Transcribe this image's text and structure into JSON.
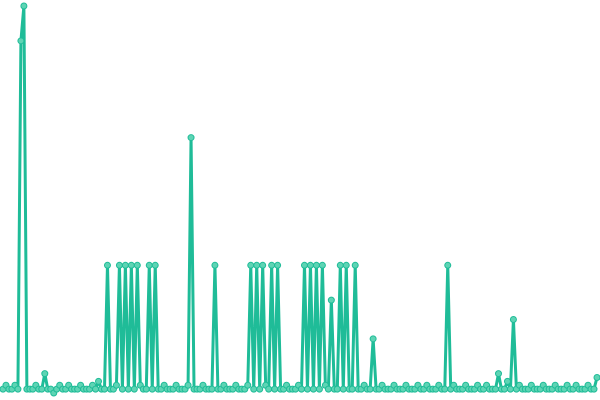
{
  "chart_data": {
    "type": "line",
    "color": "#1fbc98",
    "marker_color": "#5ed4b4",
    "ylim": [
      0,
      100
    ],
    "values": [
      1,
      2,
      1,
      1,
      2,
      1,
      91,
      100,
      1,
      1,
      1,
      2,
      1,
      1,
      5,
      1,
      1,
      0,
      1,
      2,
      1,
      1,
      2,
      1,
      1,
      1,
      2,
      1,
      1,
      1,
      2,
      1,
      3,
      1,
      1,
      33,
      1,
      1,
      2,
      33,
      1,
      33,
      1,
      33,
      1,
      33,
      2,
      1,
      1,
      33,
      1,
      33,
      1,
      1,
      2,
      1,
      1,
      1,
      2,
      1,
      1,
      1,
      2,
      66,
      1,
      1,
      1,
      2,
      1,
      1,
      1,
      33,
      1,
      1,
      2,
      1,
      1,
      1,
      2,
      1,
      1,
      1,
      2,
      33,
      1,
      33,
      1,
      33,
      2,
      1,
      33,
      1,
      33,
      1,
      1,
      2,
      1,
      1,
      1,
      2,
      1,
      33,
      1,
      33,
      1,
      33,
      1,
      33,
      2,
      1,
      24,
      1,
      1,
      33,
      1,
      33,
      1,
      1,
      33,
      1,
      1,
      2,
      1,
      1,
      14,
      1,
      1,
      2,
      1,
      1,
      1,
      2,
      1,
      1,
      1,
      2,
      1,
      1,
      1,
      2,
      1,
      1,
      2,
      1,
      1,
      1,
      2,
      1,
      1,
      33,
      1,
      2,
      1,
      1,
      1,
      2,
      1,
      1,
      1,
      2,
      1,
      1,
      2,
      1,
      1,
      1,
      5,
      1,
      1,
      3,
      1,
      19,
      1,
      2,
      1,
      1,
      1,
      2,
      1,
      1,
      1,
      2,
      1,
      1,
      1,
      2,
      1,
      1,
      1,
      2,
      1,
      1,
      2,
      1,
      1,
      1,
      2,
      1,
      1,
      4
    ]
  }
}
